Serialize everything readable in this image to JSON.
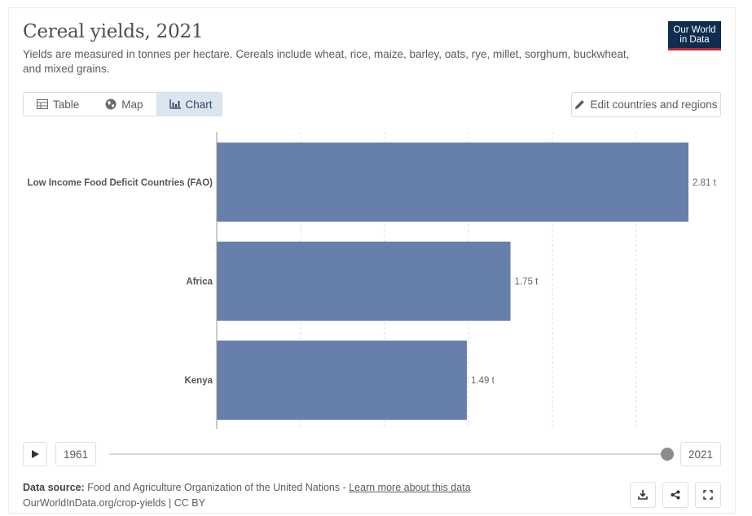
{
  "header": {
    "title": "Cereal yields, 2021",
    "subtitle": "Yields are measured in tonnes per hectare. Cereals include wheat, rice, maize, barley, oats, rye, millet, sorghum, buckwheat, and mixed grains.",
    "logo_line1": "Our World",
    "logo_line2": "in Data"
  },
  "tabs": [
    {
      "label": "Table",
      "icon": "table-icon",
      "active": false
    },
    {
      "label": "Map",
      "icon": "globe-icon",
      "active": false
    },
    {
      "label": "Chart",
      "icon": "chart-icon",
      "active": true
    }
  ],
  "edit_button": {
    "label": "Edit countries and regions",
    "icon": "pencil-icon"
  },
  "chart_data": {
    "type": "bar",
    "orientation": "horizontal",
    "categories": [
      "Low Income Food Deficit Countries (FAO)",
      "Africa",
      "Kenya"
    ],
    "values": [
      2.81,
      1.75,
      1.49
    ],
    "value_labels": [
      "2.81 t",
      "1.75 t",
      "1.49 t"
    ],
    "unit": "t",
    "xlim": [
      0,
      2.81
    ],
    "gridlines": [
      0,
      0.5,
      1,
      1.5,
      2,
      2.5
    ],
    "grid": true,
    "bar_color": "#6780ab"
  },
  "timeline": {
    "start_year": "1961",
    "end_year": "2021",
    "selected_year": "2021"
  },
  "footer": {
    "source_label": "Data source:",
    "source_text": "Food and Agriculture Organization of the United Nations - ",
    "link_text": "Learn more about this data",
    "url_text": "OurWorldInData.org/crop-yields | CC BY"
  },
  "colors": {
    "accent_logo": "#0f2d4e",
    "logo_stripe": "#c4262e",
    "active_tab": "#dbe5f0"
  }
}
